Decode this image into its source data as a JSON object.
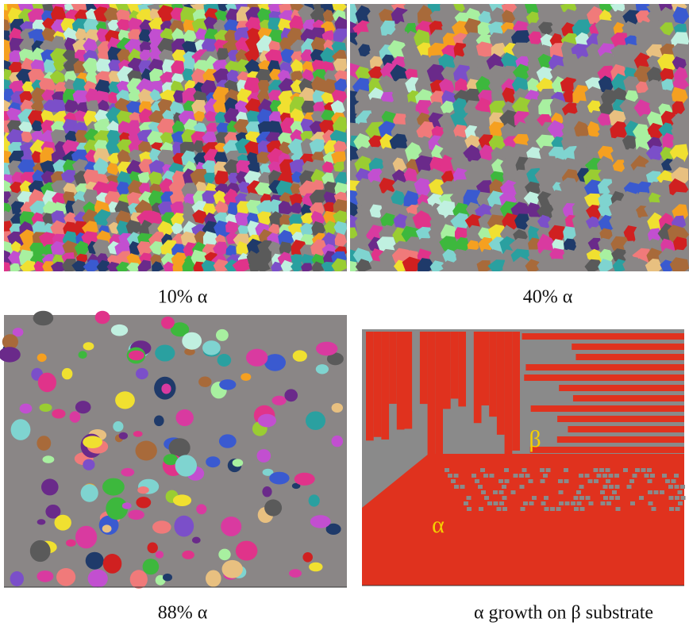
{
  "panels": [
    {
      "caption": "10% α"
    },
    {
      "caption": "40% α"
    },
    {
      "caption": "88% α"
    },
    {
      "caption": "α growth on β substrate"
    }
  ],
  "labels": {
    "beta": "β",
    "alpha": "α"
  }
}
